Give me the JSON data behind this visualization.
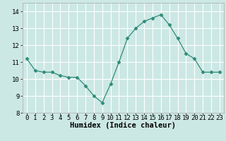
{
  "x": [
    0,
    1,
    2,
    3,
    4,
    5,
    6,
    7,
    8,
    9,
    10,
    11,
    12,
    13,
    14,
    15,
    16,
    17,
    18,
    19,
    20,
    21,
    22,
    23
  ],
  "y": [
    11.2,
    10.5,
    10.4,
    10.4,
    10.2,
    10.1,
    10.1,
    9.6,
    9.0,
    8.6,
    9.7,
    11.0,
    12.4,
    13.0,
    13.4,
    13.6,
    13.8,
    13.2,
    12.4,
    11.5,
    11.2,
    10.4,
    10.4,
    10.4
  ],
  "line_color": "#2e8b7a",
  "marker": "D",
  "marker_size": 2.5,
  "bg_color": "#cce8e4",
  "grid_color": "#ffffff",
  "xlabel": "Humidex (Indice chaleur)",
  "ylim": [
    8,
    14.5
  ],
  "xlim": [
    -0.5,
    23.5
  ],
  "yticks": [
    8,
    9,
    10,
    11,
    12,
    13,
    14
  ],
  "xticks": [
    0,
    1,
    2,
    3,
    4,
    5,
    6,
    7,
    8,
    9,
    10,
    11,
    12,
    13,
    14,
    15,
    16,
    17,
    18,
    19,
    20,
    21,
    22,
    23
  ],
  "xlabel_fontsize": 7.5,
  "tick_fontsize": 6.5
}
